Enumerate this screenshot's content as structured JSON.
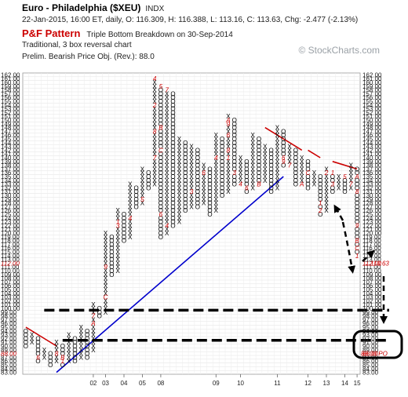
{
  "header": {
    "title": "Euro - Philadelphia ($XEU)",
    "exchange": "INDX",
    "ohlc_line": "22-Jan-2015, 16:00 ET, daily, O: 116.309, H: 116.388, L: 113.16, C: 113.63, Chg: -2.477 (-2.13%)",
    "pattern_name": "P&F Pattern",
    "pattern_desc": "Triple Bottom Breakdown on 30-Sep-2014",
    "reversal_line": "Traditional, 3 box reversal chart",
    "objective_line": "Prelim. Bearish Price Obj. (Rev.): 88.0",
    "brand": "© StockCharts.com"
  },
  "chart_data": {
    "type": "point-and-figure",
    "box_size": 1,
    "reversal": 3,
    "ylim": [
      83,
      162
    ],
    "y_ticks": [
      83,
      84,
      85,
      86,
      87,
      88,
      89,
      90,
      91,
      92,
      93,
      94,
      95,
      96,
      97,
      98,
      99,
      100,
      101,
      102,
      103,
      104,
      105,
      106,
      107,
      108,
      109,
      110,
      111,
      112,
      113,
      114,
      115,
      116,
      117,
      118,
      119,
      120,
      121,
      122,
      123,
      124,
      125,
      126,
      127,
      128,
      129,
      130,
      131,
      132,
      133,
      134,
      135,
      136,
      137,
      138,
      139,
      140,
      141,
      142,
      143,
      144,
      145,
      146,
      147,
      148,
      149,
      150,
      151,
      152,
      153,
      154,
      155,
      156,
      157,
      158,
      159,
      160,
      161,
      162
    ],
    "x_ticks": [
      "02",
      "03",
      "04",
      "05",
      "08",
      "09",
      "10",
      "11",
      "12",
      "13",
      "14",
      "15"
    ],
    "columns": [
      {
        "t": "O",
        "top": 94,
        "bot": 90
      },
      {
        "t": "X",
        "top": 93,
        "bot": 91
      },
      {
        "t": "O",
        "top": 92,
        "bot": 86
      },
      {
        "t": "X",
        "top": 89,
        "bot": 87
      },
      {
        "t": "O",
        "top": 88,
        "bot": 85
      },
      {
        "t": "X",
        "top": 91,
        "bot": 86
      },
      {
        "t": "O",
        "top": 90,
        "bot": 85
      },
      {
        "t": "X",
        "top": 93,
        "bot": 86
      },
      {
        "t": "O",
        "top": 92,
        "bot": 86
      },
      {
        "t": "X",
        "top": 95,
        "bot": 87
      },
      {
        "t": "O",
        "top": 94,
        "bot": 87
      },
      {
        "t": "X",
        "top": 101,
        "bot": 89
      },
      {
        "t": "O",
        "top": 100,
        "bot": 98
      },
      {
        "t": "X",
        "top": 120,
        "bot": 99
      },
      {
        "t": "O",
        "top": 119,
        "bot": 109
      },
      {
        "t": "X",
        "top": 126,
        "bot": 110
      },
      {
        "t": "O",
        "top": 125,
        "bot": 118
      },
      {
        "t": "X",
        "top": 133,
        "bot": 119
      },
      {
        "t": "O",
        "top": 132,
        "bot": 127
      },
      {
        "t": "X",
        "top": 137,
        "bot": 128
      },
      {
        "t": "O",
        "top": 136,
        "bot": 132
      },
      {
        "t": "X",
        "top": 160,
        "bot": 133
      },
      {
        "t": "O",
        "top": 159,
        "bot": 119
      },
      {
        "t": "X",
        "top": 158,
        "bot": 120
      },
      {
        "t": "O",
        "top": 157,
        "bot": 122
      },
      {
        "t": "X",
        "top": 145,
        "bot": 123
      },
      {
        "t": "O",
        "top": 144,
        "bot": 126
      },
      {
        "t": "X",
        "top": 143,
        "bot": 127
      },
      {
        "t": "O",
        "top": 142,
        "bot": 127
      },
      {
        "t": "X",
        "top": 138,
        "bot": 128
      },
      {
        "t": "O",
        "top": 137,
        "bot": 125
      },
      {
        "t": "X",
        "top": 146,
        "bot": 126
      },
      {
        "t": "O",
        "top": 145,
        "bot": 130
      },
      {
        "t": "X",
        "top": 151,
        "bot": 131
      },
      {
        "t": "O",
        "top": 150,
        "bot": 133
      },
      {
        "t": "X",
        "top": 140,
        "bot": 134
      },
      {
        "t": "O",
        "top": 139,
        "bot": 131
      },
      {
        "t": "X",
        "top": 146,
        "bot": 132
      },
      {
        "t": "O",
        "top": 145,
        "bot": 133
      },
      {
        "t": "X",
        "top": 143,
        "bot": 134
      },
      {
        "t": "O",
        "top": 142,
        "bot": 131
      },
      {
        "t": "X",
        "top": 148,
        "bot": 132
      },
      {
        "t": "O",
        "top": 147,
        "bot": 138
      },
      {
        "t": "X",
        "top": 143,
        "bot": 139
      },
      {
        "t": "O",
        "top": 142,
        "bot": 133
      },
      {
        "t": "X",
        "top": 140,
        "bot": 134
      },
      {
        "t": "O",
        "top": 139,
        "bot": 132
      },
      {
        "t": "X",
        "top": 136,
        "bot": 133
      },
      {
        "t": "O",
        "top": 135,
        "bot": 125
      },
      {
        "t": "X",
        "top": 137,
        "bot": 126
      },
      {
        "t": "O",
        "top": 136,
        "bot": 131
      },
      {
        "t": "X",
        "top": 135,
        "bot": 132
      },
      {
        "t": "O",
        "top": 134,
        "bot": 131
      },
      {
        "t": "X",
        "top": 138,
        "bot": 132
      },
      {
        "t": "O",
        "top": 137,
        "bot": 114
      }
    ],
    "markers": [
      {
        "c": 2,
        "v": 87,
        "s": "6"
      },
      {
        "c": 5,
        "v": 88,
        "s": "8"
      },
      {
        "c": 6,
        "v": 86,
        "s": "1"
      },
      {
        "c": 6,
        "v": 87,
        "s": "B"
      },
      {
        "c": 11,
        "v": 98,
        "s": "7"
      },
      {
        "c": 11,
        "v": 96,
        "s": "A"
      },
      {
        "c": 13,
        "v": 111,
        "s": "9"
      },
      {
        "c": 13,
        "v": 103,
        "s": "C"
      },
      {
        "c": 15,
        "v": 123,
        "s": "1"
      },
      {
        "c": 15,
        "v": 122,
        "s": "3"
      },
      {
        "c": 17,
        "v": 124,
        "s": "4"
      },
      {
        "c": 19,
        "v": 129,
        "s": "5"
      },
      {
        "c": 21,
        "v": 140,
        "s": "7"
      },
      {
        "c": 21,
        "v": 147,
        "s": "8"
      },
      {
        "c": 21,
        "v": 154,
        "s": "2"
      },
      {
        "c": 21,
        "v": 161,
        "s": "4"
      },
      {
        "c": 22,
        "v": 159,
        "s": "5"
      },
      {
        "c": 23,
        "v": 158,
        "s": "7"
      },
      {
        "c": 22,
        "v": 148,
        "s": "B"
      },
      {
        "c": 22,
        "v": 142,
        "s": "C"
      },
      {
        "c": 22,
        "v": 125,
        "s": "6"
      },
      {
        "c": 23,
        "v": 122,
        "s": "4"
      },
      {
        "c": 27,
        "v": 131,
        "s": "3"
      },
      {
        "c": 29,
        "v": 136,
        "s": "6"
      },
      {
        "c": 31,
        "v": 140,
        "s": "4"
      },
      {
        "c": 33,
        "v": 150,
        "s": "A"
      },
      {
        "c": 33,
        "v": 149,
        "s": "9"
      },
      {
        "c": 33,
        "v": 146,
        "s": "6"
      },
      {
        "c": 33,
        "v": 142,
        "s": "8"
      },
      {
        "c": 33,
        "v": 140,
        "s": "1"
      },
      {
        "c": 34,
        "v": 136,
        "s": "3"
      },
      {
        "c": 35,
        "v": 133,
        "s": "4"
      },
      {
        "c": 36,
        "v": 132,
        "s": "6"
      },
      {
        "c": 38,
        "v": 133,
        "s": "B"
      },
      {
        "c": 42,
        "v": 140,
        "s": "6"
      },
      {
        "c": 42,
        "v": 139,
        "s": "9"
      },
      {
        "c": 43,
        "v": 138,
        "s": "7"
      },
      {
        "c": 45,
        "v": 133,
        "s": "A"
      },
      {
        "c": 46,
        "v": 136,
        "s": "C"
      },
      {
        "c": 48,
        "v": 128,
        "s": "1"
      },
      {
        "c": 48,
        "v": 126,
        "s": "2"
      },
      {
        "c": 49,
        "v": 136,
        "s": "2"
      },
      {
        "c": 50,
        "v": 136,
        "s": "1"
      },
      {
        "c": 50,
        "v": 133,
        "s": "3"
      },
      {
        "c": 52,
        "v": 135,
        "s": "5"
      },
      {
        "c": 53,
        "v": 133,
        "s": "7"
      },
      {
        "c": 54,
        "v": 135,
        "s": "A"
      },
      {
        "c": 54,
        "v": 131,
        "s": "8"
      },
      {
        "c": 54,
        "v": 122,
        "s": "9"
      },
      {
        "c": 54,
        "v": 118,
        "s": "B"
      },
      {
        "c": 54,
        "v": 116,
        "s": "C"
      },
      {
        "c": 54,
        "v": 114,
        "s": "1"
      }
    ],
    "trendlines": [
      {
        "color": "#cc0000",
        "from": [
          0,
          95
        ],
        "to": [
          5,
          90
        ]
      },
      {
        "color": "#0000cc",
        "from": [
          5,
          83
        ],
        "to": [
          42,
          135
        ]
      },
      {
        "color": "#cc0000",
        "from": [
          39,
          148
        ],
        "to": [
          45,
          142
        ]
      },
      {
        "color": "#cc0000",
        "from": [
          46,
          142
        ],
        "to": [
          48,
          140
        ]
      },
      {
        "color": "#cc0000",
        "from": [
          50,
          139
        ],
        "to": [
          54,
          137
        ]
      }
    ],
    "support_lines": [
      {
        "value": 99.5,
        "from_col": 3
      },
      {
        "value": 91.5,
        "from_col": 6
      }
    ],
    "last_price_label": "113.63",
    "objective_label": "88.00 PO",
    "axis_colors": {
      "highlight": "#cc0000",
      "up": "#0000cc",
      "down": "#cc0000",
      "dashed": "#000000"
    }
  }
}
